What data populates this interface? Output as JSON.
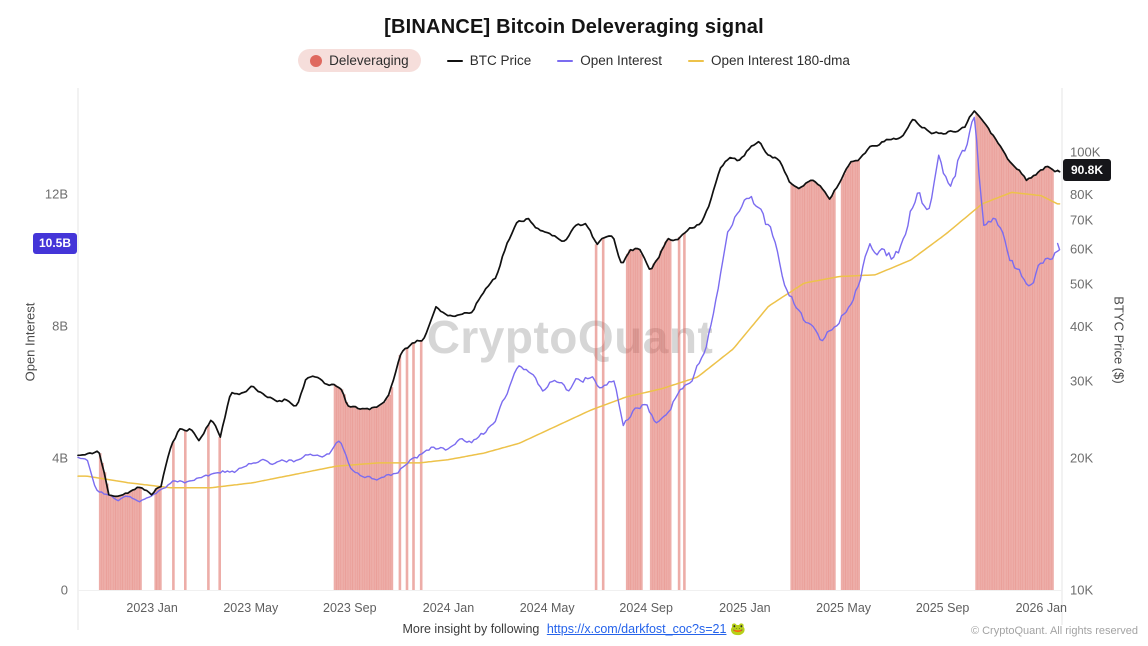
{
  "title": "[BINANCE] Bitcoin Deleveraging signal",
  "legend": [
    {
      "label": "Deleveraging",
      "type": "dot",
      "color": "#df695f",
      "pill_bg": "#f6dedb"
    },
    {
      "label": "BTC Price",
      "type": "line",
      "color": "#111111"
    },
    {
      "label": "Open Interest",
      "type": "line",
      "color": "#7b6cf0"
    },
    {
      "label": "Open Interest 180-dma",
      "type": "line",
      "color": "#edc24a"
    }
  ],
  "badges": {
    "left": {
      "label": "10.5B",
      "value": 10.5,
      "bg": "#4435d8"
    },
    "right": {
      "label": "90.8K",
      "value": 90800,
      "bg": "#16161a"
    }
  },
  "watermark": "CryptoQuant",
  "footer": {
    "prefix": "More insight by following",
    "link": "https://x.com/darkfost_coc?s=21",
    "emoji": "🐸",
    "copyright": "© CryptoQuant. All rights reserved"
  },
  "chart_data": {
    "type": "line",
    "title": "[BINANCE] Bitcoin Deleveraging signal",
    "x_domain": [
      2022.75,
      2026.07
    ],
    "axes": {
      "left": {
        "title": "Open Interest",
        "max": 15,
        "unit": "B",
        "ticks": [
          {
            "v": 0,
            "label": "0"
          },
          {
            "v": 4,
            "label": "4B"
          },
          {
            "v": 8,
            "label": "8B"
          },
          {
            "v": 12,
            "label": "12B"
          }
        ]
      },
      "right": {
        "title": "BTYC Price ($)",
        "scale": "log",
        "ticks": [
          {
            "v": 10000,
            "label": "10K"
          },
          {
            "v": 20000,
            "label": "20K"
          },
          {
            "v": 30000,
            "label": "30K"
          },
          {
            "v": 40000,
            "label": "40K"
          },
          {
            "v": 50000,
            "label": "50K"
          },
          {
            "v": 60000,
            "label": "60K"
          },
          {
            "v": 70000,
            "label": "70K"
          },
          {
            "v": 80000,
            "label": "80K"
          },
          {
            "v": 100000,
            "label": "100K"
          }
        ]
      },
      "x": {
        "ticks": [
          {
            "v": 2023.0,
            "label": "2023 Jan"
          },
          {
            "v": 2023.333,
            "label": "2023 May"
          },
          {
            "v": 2023.667,
            "label": "2023 Sep"
          },
          {
            "v": 2024.0,
            "label": "2024 Jan"
          },
          {
            "v": 2024.333,
            "label": "2024 May"
          },
          {
            "v": 2024.667,
            "label": "2024 Sep"
          },
          {
            "v": 2025.0,
            "label": "2025 Jan"
          },
          {
            "v": 2025.333,
            "label": "2025 May"
          },
          {
            "v": 2025.667,
            "label": "2025 Sep"
          },
          {
            "v": 2026.0,
            "label": "2026 Jan"
          }
        ]
      }
    },
    "series": [
      {
        "name": "BTC Price",
        "axis": "right",
        "color": "#111111",
        "width": 1.7,
        "jitter": 0.028,
        "points": [
          [
            2022.78,
            20300
          ],
          [
            2022.82,
            20800
          ],
          [
            2022.855,
            16300
          ],
          [
            2022.9,
            16600
          ],
          [
            2022.95,
            17100
          ],
          [
            2023.0,
            16600
          ],
          [
            2023.03,
            17300
          ],
          [
            2023.06,
            20900
          ],
          [
            2023.09,
            23100
          ],
          [
            2023.13,
            23400
          ],
          [
            2023.16,
            21900
          ],
          [
            2023.2,
            24700
          ],
          [
            2023.23,
            22300
          ],
          [
            2023.265,
            28200
          ],
          [
            2023.3,
            28000
          ],
          [
            2023.34,
            29400
          ],
          [
            2023.38,
            27600
          ],
          [
            2023.42,
            26900
          ],
          [
            2023.45,
            27300
          ],
          [
            2023.49,
            26400
          ],
          [
            2023.52,
            30600
          ],
          [
            2023.56,
            30300
          ],
          [
            2023.6,
            29200
          ],
          [
            2023.635,
            29100
          ],
          [
            2023.66,
            26100
          ],
          [
            2023.7,
            26000
          ],
          [
            2023.735,
            25900
          ],
          [
            2023.77,
            26600
          ],
          [
            2023.8,
            27800
          ],
          [
            2023.84,
            34600
          ],
          [
            2023.88,
            36800
          ],
          [
            2023.92,
            37700
          ],
          [
            2023.96,
            43900
          ],
          [
            2024.0,
            42300
          ],
          [
            2024.04,
            43000
          ],
          [
            2024.08,
            43100
          ],
          [
            2024.12,
            48200
          ],
          [
            2024.16,
            52000
          ],
          [
            2024.195,
            61500
          ],
          [
            2024.23,
            68500
          ],
          [
            2024.27,
            70800
          ],
          [
            2024.31,
            66200
          ],
          [
            2024.35,
            64200
          ],
          [
            2024.39,
            62900
          ],
          [
            2024.43,
            67600
          ],
          [
            2024.465,
            68400
          ],
          [
            2024.5,
            61200
          ],
          [
            2024.53,
            63500
          ],
          [
            2024.555,
            64800
          ],
          [
            2024.585,
            55200
          ],
          [
            2024.61,
            59500
          ],
          [
            2024.645,
            60500
          ],
          [
            2024.68,
            54200
          ],
          [
            2024.71,
            57500
          ],
          [
            2024.74,
            63300
          ],
          [
            2024.77,
            62600
          ],
          [
            2024.81,
            67200
          ],
          [
            2024.85,
            69200
          ],
          [
            2024.88,
            75500
          ],
          [
            2024.915,
            90500
          ],
          [
            2024.95,
            97800
          ],
          [
            2024.985,
            95500
          ],
          [
            2025.02,
            102500
          ],
          [
            2025.05,
            104500
          ],
          [
            2025.08,
            97800
          ],
          [
            2025.115,
            96700
          ],
          [
            2025.15,
            84800
          ],
          [
            2025.19,
            83500
          ],
          [
            2025.225,
            87000
          ],
          [
            2025.26,
            82000
          ],
          [
            2025.285,
            77500
          ],
          [
            2025.32,
            85200
          ],
          [
            2025.355,
            94800
          ],
          [
            2025.39,
            97200
          ],
          [
            2025.425,
            103900
          ],
          [
            2025.46,
            105600
          ],
          [
            2025.5,
            107300
          ],
          [
            2025.535,
            109000
          ],
          [
            2025.57,
            118500
          ],
          [
            2025.605,
            114000
          ],
          [
            2025.64,
            110900
          ],
          [
            2025.675,
            111500
          ],
          [
            2025.71,
            112800
          ],
          [
            2025.745,
            116000
          ],
          [
            2025.775,
            124800
          ],
          [
            2025.8,
            120500
          ],
          [
            2025.83,
            110500
          ],
          [
            2025.86,
            103500
          ],
          [
            2025.89,
            95200
          ],
          [
            2025.92,
            91200
          ],
          [
            2025.95,
            86500
          ],
          [
            2025.985,
            89500
          ],
          [
            2026.02,
            92500
          ],
          [
            2026.055,
            90800
          ]
        ]
      },
      {
        "name": "Open Interest",
        "axis": "left",
        "color": "#7b6cf0",
        "width": 1.4,
        "jitter": 0.05,
        "points": [
          [
            2022.78,
            4.05
          ],
          [
            2022.81,
            3.1
          ],
          [
            2022.845,
            2.95
          ],
          [
            2022.88,
            2.7
          ],
          [
            2022.92,
            2.82
          ],
          [
            2022.96,
            2.74
          ],
          [
            2023.0,
            2.92
          ],
          [
            2023.04,
            3.06
          ],
          [
            2023.08,
            3.32
          ],
          [
            2023.12,
            3.3
          ],
          [
            2023.16,
            3.46
          ],
          [
            2023.2,
            3.52
          ],
          [
            2023.24,
            3.6
          ],
          [
            2023.28,
            3.56
          ],
          [
            2023.32,
            3.76
          ],
          [
            2023.36,
            3.92
          ],
          [
            2023.4,
            3.86
          ],
          [
            2023.44,
            3.96
          ],
          [
            2023.48,
            3.9
          ],
          [
            2023.52,
            4.06
          ],
          [
            2023.56,
            4.0
          ],
          [
            2023.6,
            4.14
          ],
          [
            2023.635,
            4.5
          ],
          [
            2023.67,
            3.7
          ],
          [
            2023.71,
            3.46
          ],
          [
            2023.75,
            3.36
          ],
          [
            2023.79,
            3.46
          ],
          [
            2023.83,
            3.6
          ],
          [
            2023.87,
            3.96
          ],
          [
            2023.91,
            4.1
          ],
          [
            2023.95,
            4.36
          ],
          [
            2024.0,
            4.22
          ],
          [
            2024.04,
            4.5
          ],
          [
            2024.08,
            4.42
          ],
          [
            2024.12,
            4.72
          ],
          [
            2024.16,
            5.2
          ],
          [
            2024.2,
            5.95
          ],
          [
            2024.24,
            6.8
          ],
          [
            2024.28,
            6.4
          ],
          [
            2024.32,
            6.1
          ],
          [
            2024.36,
            6.45
          ],
          [
            2024.4,
            6.0
          ],
          [
            2024.44,
            6.35
          ],
          [
            2024.48,
            6.5
          ],
          [
            2024.52,
            6.1
          ],
          [
            2024.56,
            6.3
          ],
          [
            2024.59,
            4.95
          ],
          [
            2024.63,
            5.5
          ],
          [
            2024.67,
            5.62
          ],
          [
            2024.7,
            5.1
          ],
          [
            2024.74,
            5.52
          ],
          [
            2024.78,
            6.05
          ],
          [
            2024.82,
            6.3
          ],
          [
            2024.86,
            7.25
          ],
          [
            2024.9,
            8.6
          ],
          [
            2024.94,
            10.6
          ],
          [
            2024.98,
            11.3
          ],
          [
            2025.02,
            12.1
          ],
          [
            2025.06,
            11.2
          ],
          [
            2025.1,
            10.6
          ],
          [
            2025.14,
            9.2
          ],
          [
            2025.18,
            8.4
          ],
          [
            2025.22,
            8.0
          ],
          [
            2025.26,
            7.6
          ],
          [
            2025.3,
            7.95
          ],
          [
            2025.34,
            8.6
          ],
          [
            2025.38,
            9.3
          ],
          [
            2025.42,
            10.6
          ],
          [
            2025.46,
            10.3
          ],
          [
            2025.5,
            10.0
          ],
          [
            2025.54,
            10.45
          ],
          [
            2025.58,
            12.1
          ],
          [
            2025.62,
            11.3
          ],
          [
            2025.655,
            13.1
          ],
          [
            2025.69,
            12.0
          ],
          [
            2025.73,
            13.3
          ],
          [
            2025.775,
            14.1
          ],
          [
            2025.805,
            10.9
          ],
          [
            2025.84,
            11.2
          ],
          [
            2025.88,
            10.3
          ],
          [
            2025.92,
            9.6
          ],
          [
            2025.955,
            9.2
          ],
          [
            2026.0,
            9.9
          ],
          [
            2026.03,
            10.2
          ],
          [
            2026.055,
            10.5
          ]
        ]
      },
      {
        "name": "Open Interest 180-dma",
        "axis": "left",
        "color": "#edc24a",
        "width": 1.5,
        "jitter": 0,
        "points": [
          [
            2022.78,
            3.45
          ],
          [
            2022.92,
            3.25
          ],
          [
            2023.06,
            3.1
          ],
          [
            2023.2,
            3.1
          ],
          [
            2023.34,
            3.25
          ],
          [
            2023.48,
            3.5
          ],
          [
            2023.62,
            3.75
          ],
          [
            2023.76,
            3.85
          ],
          [
            2023.9,
            3.85
          ],
          [
            2024.0,
            3.95
          ],
          [
            2024.12,
            4.15
          ],
          [
            2024.24,
            4.45
          ],
          [
            2024.36,
            4.95
          ],
          [
            2024.48,
            5.45
          ],
          [
            2024.6,
            5.85
          ],
          [
            2024.72,
            6.1
          ],
          [
            2024.84,
            6.45
          ],
          [
            2024.96,
            7.3
          ],
          [
            2025.08,
            8.6
          ],
          [
            2025.2,
            9.3
          ],
          [
            2025.32,
            9.5
          ],
          [
            2025.44,
            9.55
          ],
          [
            2025.56,
            10.0
          ],
          [
            2025.68,
            10.8
          ],
          [
            2025.8,
            11.7
          ],
          [
            2025.9,
            12.05
          ],
          [
            2026.0,
            11.95
          ],
          [
            2026.055,
            11.7
          ]
        ]
      }
    ],
    "deleveraging_signals": {
      "color": "#dc5b52",
      "opacity": 0.5,
      "bar_width": 2.6,
      "spacing": 0.008,
      "periods": [
        [
          2022.825,
          2022.965
        ],
        [
          2023.012,
          2023.03
        ],
        [
          2023.617,
          2023.812
        ],
        [
          2024.603,
          2024.658
        ],
        [
          2024.684,
          2024.752
        ],
        [
          2025.158,
          2025.306
        ],
        [
          2025.328,
          2025.39
        ],
        [
          2025.782,
          2026.04
        ]
      ],
      "singles": [
        2023.072,
        2023.112,
        2023.19,
        2023.228,
        2023.836,
        2023.86,
        2023.882,
        2023.908,
        2024.498,
        2024.522,
        2024.778,
        2024.796
      ]
    }
  }
}
